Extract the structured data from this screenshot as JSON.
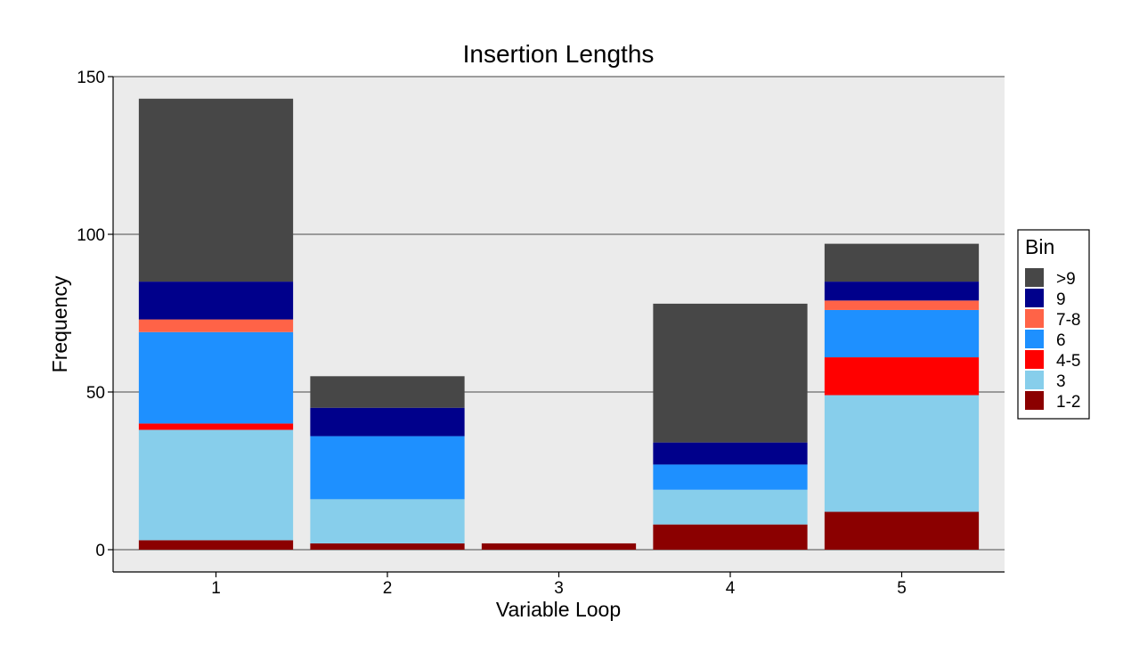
{
  "chart_data": {
    "type": "bar",
    "stacked": true,
    "title": "Insertion Lengths",
    "xlabel": "Variable Loop",
    "ylabel": "Frequency",
    "categories": [
      "1",
      "2",
      "3",
      "4",
      "5"
    ],
    "ylim": [
      -7,
      150
    ],
    "yticks": [
      "0",
      "50",
      "100",
      "150"
    ],
    "grid": true,
    "legend": {
      "title": "Bin",
      "placement": "right"
    },
    "series": [
      {
        "name": "1-2",
        "color": "#8B0000",
        "values": [
          3,
          2,
          2,
          8,
          12
        ]
      },
      {
        "name": "3",
        "color": "#87CEEB",
        "values": [
          35,
          14,
          0,
          11,
          37
        ]
      },
      {
        "name": "4-5",
        "color": "#FF0000",
        "values": [
          2,
          0,
          0,
          0,
          12
        ]
      },
      {
        "name": "6",
        "color": "#1E90FF",
        "values": [
          29,
          20,
          0,
          8,
          15
        ]
      },
      {
        "name": "7-8",
        "color": "#FF6347",
        "values": [
          4,
          0,
          0,
          0,
          3
        ]
      },
      {
        "name": "9",
        "color": "#00008B",
        "values": [
          12,
          9,
          0,
          7,
          6
        ]
      },
      {
        "name": ">9",
        "color": "#474747",
        "values": [
          58,
          10,
          0,
          44,
          12
        ]
      }
    ]
  }
}
